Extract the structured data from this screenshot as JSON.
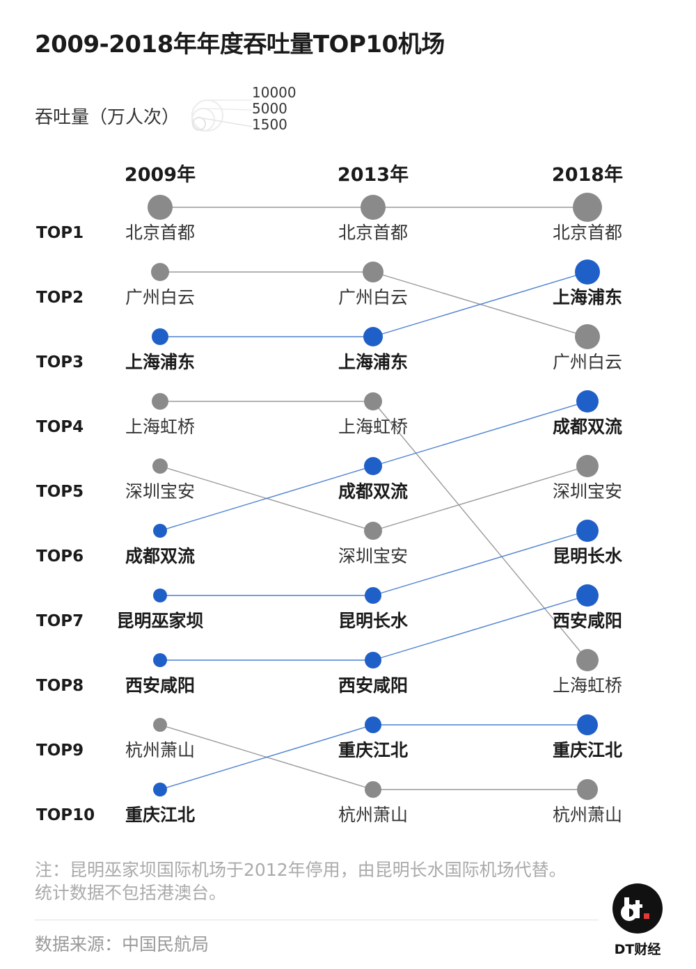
{
  "title": "2009-2018年年度吞吐量TOP10机场",
  "size_legend": {
    "label": "吞吐量（万人次）",
    "values": [
      "10000",
      "5000",
      "1500"
    ]
  },
  "chart_data": {
    "type": "bump",
    "years": [
      "2009年",
      "2013年",
      "2018年"
    ],
    "ranks": [
      "TOP1",
      "TOP2",
      "TOP3",
      "TOP4",
      "TOP5",
      "TOP6",
      "TOP7",
      "TOP8",
      "TOP9",
      "TOP10"
    ],
    "columns": [
      [
        "北京首都",
        "广州白云",
        "上海浦东",
        "上海虹桥",
        "深圳宝安",
        "成都双流",
        "昆明巫家坝",
        "西安咸阳",
        "杭州萧山",
        "重庆江北"
      ],
      [
        "北京首都",
        "广州白云",
        "上海浦东",
        "上海虹桥",
        "成都双流",
        "深圳宝安",
        "昆明长水",
        "西安咸阳",
        "重庆江北",
        "杭州萧山"
      ],
      [
        "北京首都",
        "上海浦东",
        "广州白云",
        "成都双流",
        "深圳宝安",
        "昆明长水",
        "西安咸阳",
        "上海虹桥",
        "重庆江北",
        "杭州萧山"
      ]
    ],
    "highlighted": [
      "上海浦东",
      "成都双流",
      "昆明巫家坝",
      "昆明长水",
      "西安咸阳",
      "重庆江北"
    ],
    "links": [
      {
        "from": "昆明巫家坝",
        "to": "昆明长水"
      }
    ],
    "colors": {
      "highlight": "#1f5fc8",
      "default": "#8a8a8a",
      "line_default": "#999999",
      "line_highlight": "#4a7fd0"
    }
  },
  "note_lines": [
    "注：昆明巫家坝国际机场于2012年停用，由昆明长水国际机场代替。",
    "统计数据不包括港澳台。"
  ],
  "source": "数据来源：中国民航局",
  "brand": "DT财经"
}
